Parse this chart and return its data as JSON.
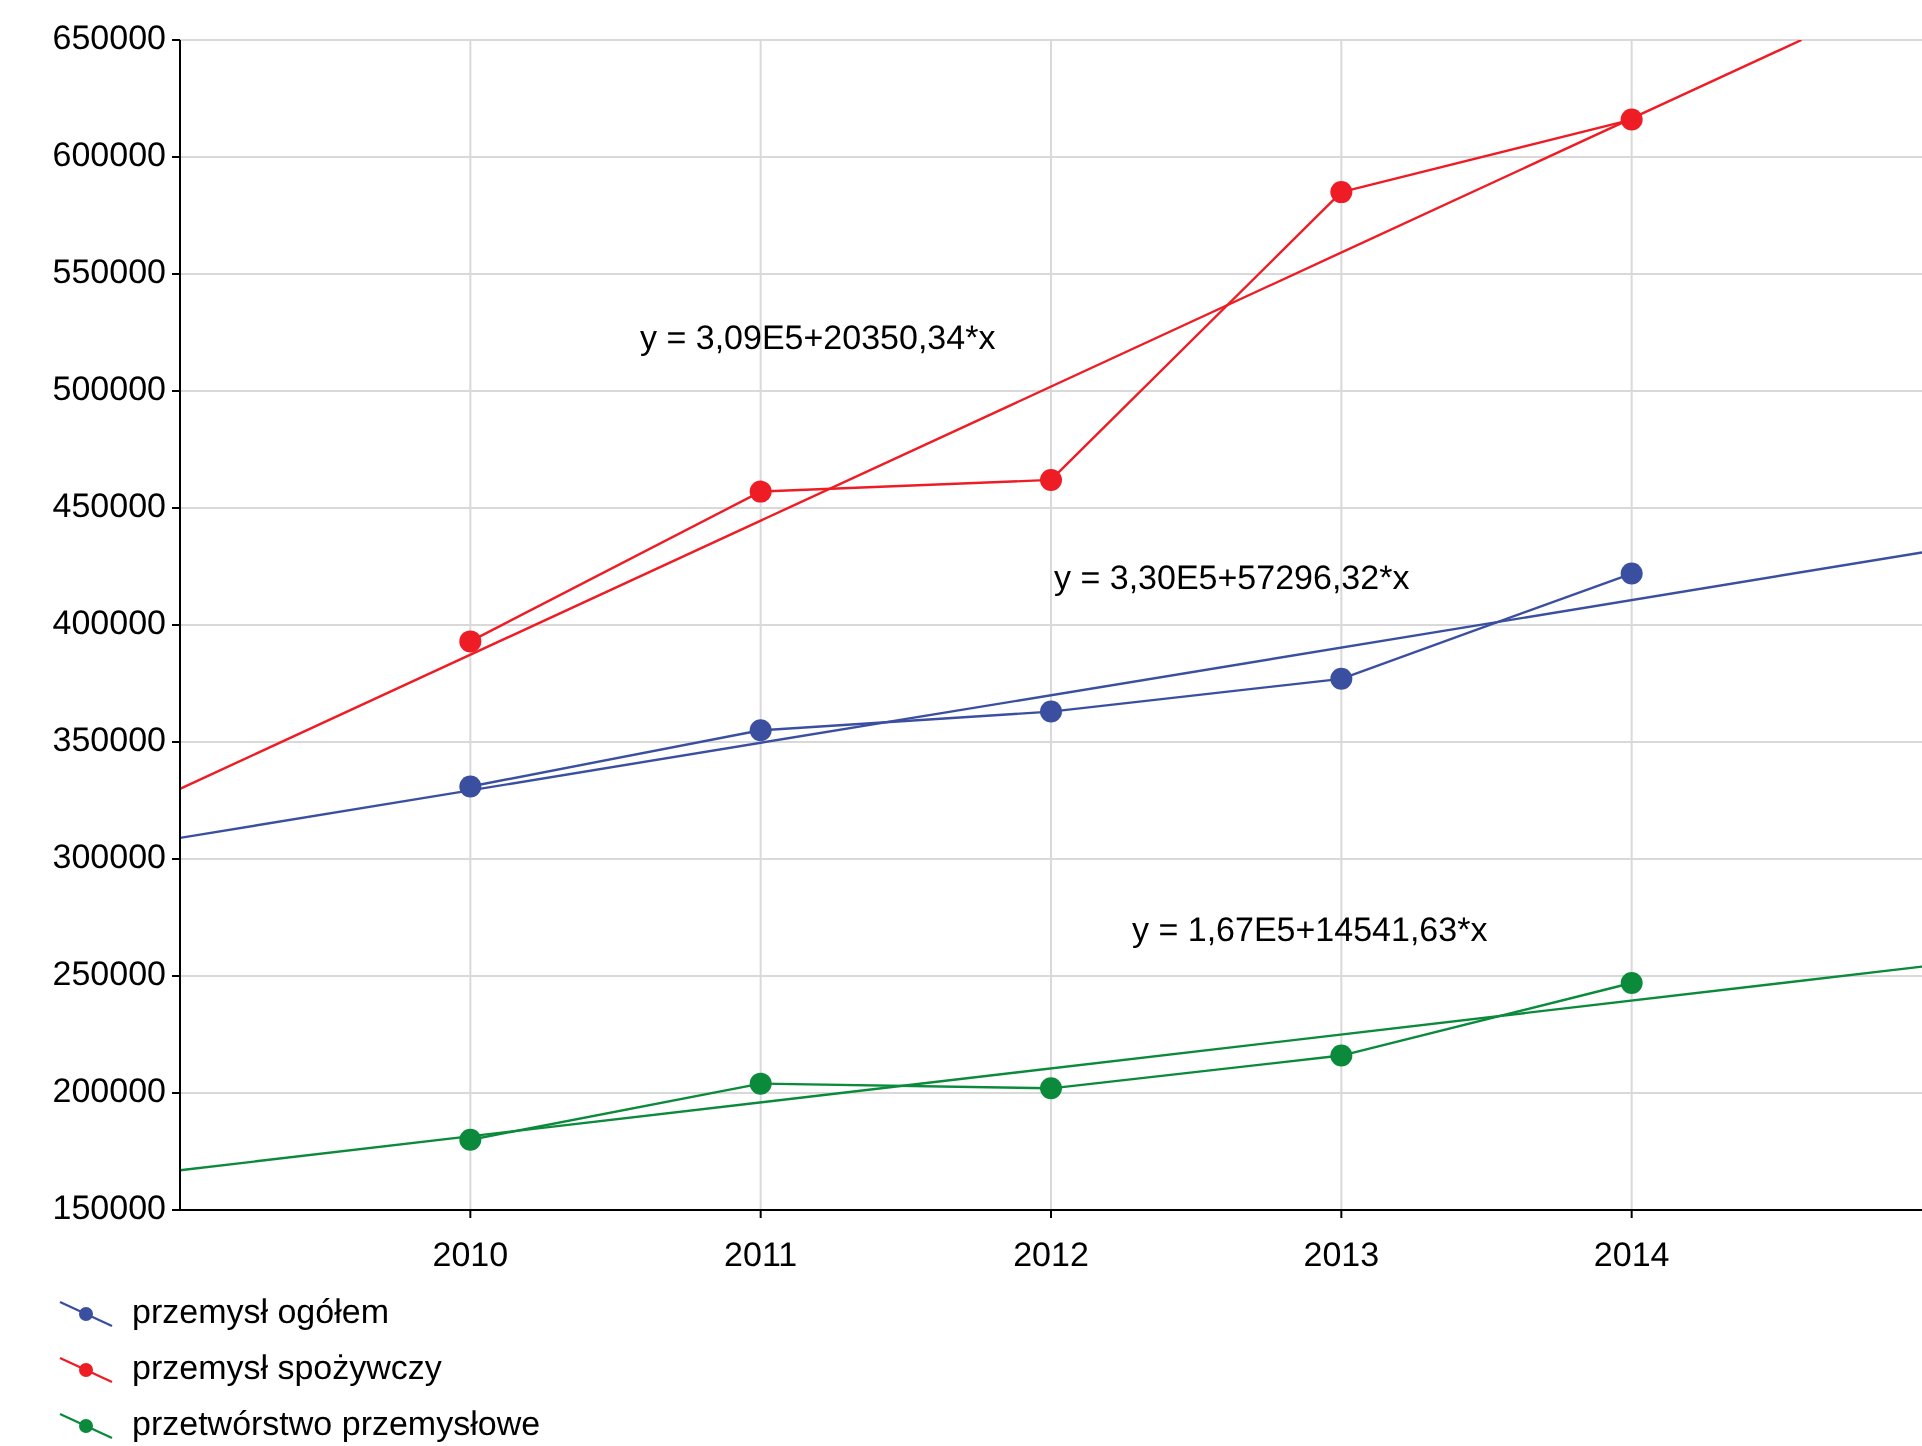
{
  "chart_data": {
    "type": "line",
    "x": [
      2010,
      2011,
      2012,
      2013,
      2014
    ],
    "series": [
      {
        "name": "przemysł ogółem",
        "color": "#3a4fa0",
        "values": [
          331000,
          355000,
          363000,
          377000,
          422000
        ]
      },
      {
        "name": "przemysł spożywczy",
        "color": "#ee1c25",
        "values": [
          393000,
          457000,
          462000,
          585000,
          616000
        ]
      },
      {
        "name": "przetwórstwo przemysłowe",
        "color": "#0a8a3a",
        "values": [
          180000,
          204000,
          202000,
          216000,
          247000
        ]
      },
      {
        "type": "line",
        "color": "#3a4fa0",
        "x": [
          2009,
          2015
        ],
        "values": [
          309000,
          431000
        ],
        "marker": "none"
      },
      {
        "type": "line",
        "color": "#ee1c25",
        "x": [
          2009,
          2014.585
        ],
        "values": [
          330000,
          650000
        ],
        "marker": "none"
      },
      {
        "type": "line",
        "color": "#0a8a3a",
        "x": [
          2009,
          2015
        ],
        "values": [
          167000,
          254000
        ],
        "marker": "none"
      }
    ],
    "xlim": [
      2009,
      2015
    ],
    "xticks": [
      2010,
      2011,
      2012,
      2013,
      2014
    ],
    "ylim": [
      150000,
      650000
    ],
    "yticks": [
      150000,
      200000,
      250000,
      300000,
      350000,
      400000,
      450000,
      500000,
      550000,
      600000,
      650000
    ],
    "annotations": [
      "y = 3,09E5+20350,34*x",
      "y = 3,30E5+57296,32*x",
      "y = 1,67E5+14541,63*x"
    ],
    "grid": true,
    "legend": "bottom",
    "marker": "circle",
    "line_style": "solid"
  }
}
